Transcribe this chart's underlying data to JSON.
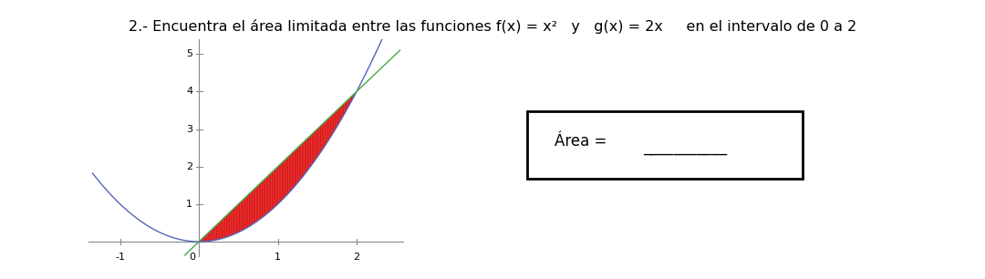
{
  "title": "2.- Encuentra el área limitada entre las funciones f(x) = x²   y   g(x) = 2x     en el intervalo de 0 a 2",
  "title_fontsize": 11.5,
  "background_color": "#ffffff",
  "xlim": [
    -1.4,
    2.6
  ],
  "ylim": [
    -0.4,
    5.4
  ],
  "x_ticks": [
    -1,
    0,
    1,
    2
  ],
  "y_ticks": [
    1,
    2,
    3,
    4,
    5
  ],
  "parabola_color": "#5566bb",
  "line_color": "#44aa44",
  "fill_color": "#dd1111",
  "fill_alpha": 0.85,
  "hatch": "||||||",
  "area_label_text": "Área = ",
  "area_underline": "___________",
  "area_fontsize": 12
}
